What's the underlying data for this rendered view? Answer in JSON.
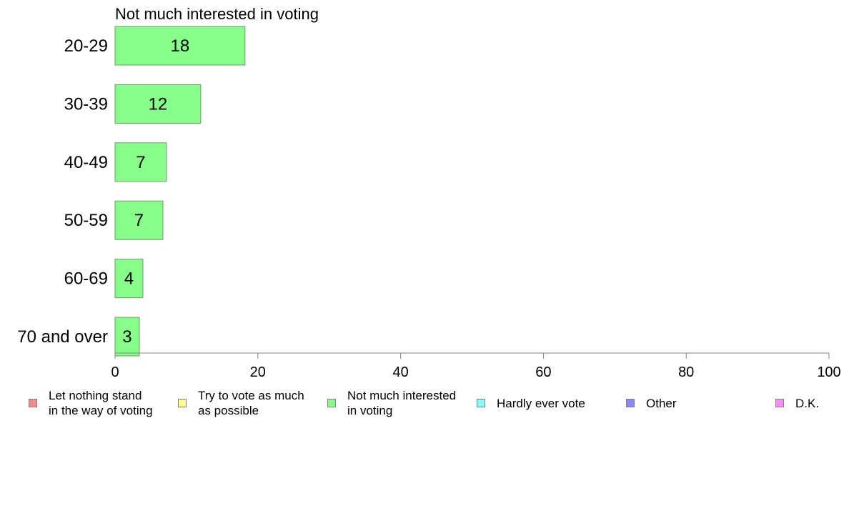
{
  "chart_data": {
    "type": "bar",
    "orientation": "horizontal",
    "title": "Not much interested in voting",
    "categories": [
      "20-29",
      "30-39",
      "40-49",
      "50-59",
      "60-69",
      "70 and over"
    ],
    "values": [
      18.2,
      12,
      7.2,
      6.7,
      3.9,
      3.4
    ],
    "data_labels": [
      "18",
      "12",
      "7",
      "7",
      "4",
      "3"
    ],
    "xlim": [
      0,
      100
    ],
    "x_ticks": [
      "0",
      "20",
      "40",
      "60",
      "80",
      "100"
    ],
    "bar_color": "#88ff88",
    "grid": false,
    "legend": {
      "position": "bottom",
      "items": [
        {
          "label": "Let nothing stand\nin the way of voting",
          "color": "#ff8888"
        },
        {
          "label": "Try to vote as much\nas possible",
          "color": "#ffff88"
        },
        {
          "label": "Not much interested\nin voting",
          "color": "#88ff88"
        },
        {
          "label": "Hardly ever vote",
          "color": "#88ffff"
        },
        {
          "label": "Other",
          "color": "#8888ff"
        },
        {
          "label": "D.K.",
          "color": "#ff88ff"
        }
      ]
    }
  }
}
